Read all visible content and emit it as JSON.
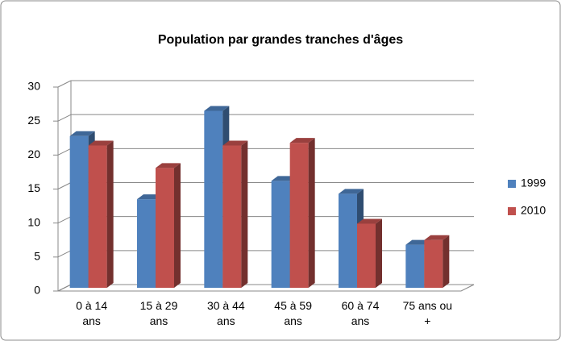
{
  "chart_data": {
    "type": "bar",
    "title": "Population par grandes tranches d'âges",
    "categories": [
      "0 à 14 ans",
      "15 à 29 ans",
      "30 à 44 ans",
      "45 à 59 ans",
      "60 à 74 ans",
      "75 ans ou +"
    ],
    "series": [
      {
        "name": "1999",
        "color": "#4f81bd",
        "values": [
          22.8,
          13.5,
          26.5,
          16.2,
          14.3,
          6.8
        ]
      },
      {
        "name": "2010",
        "color": "#c0504d",
        "values": [
          21.4,
          18.1,
          21.4,
          21.8,
          9.9,
          7.5
        ]
      }
    ],
    "ylim": [
      0,
      30
    ],
    "yticks": [
      0,
      5,
      10,
      15,
      20,
      25,
      30
    ],
    "grid": true,
    "legend": "right"
  }
}
